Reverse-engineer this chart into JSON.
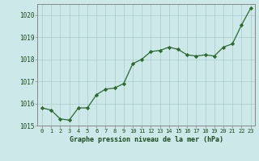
{
  "x": [
    0,
    1,
    2,
    3,
    4,
    5,
    6,
    7,
    8,
    9,
    10,
    11,
    12,
    13,
    14,
    15,
    16,
    17,
    18,
    19,
    20,
    21,
    22,
    23
  ],
  "y": [
    1015.8,
    1015.7,
    1015.3,
    1015.25,
    1015.8,
    1015.8,
    1016.4,
    1016.65,
    1016.7,
    1016.9,
    1017.8,
    1018.0,
    1018.35,
    1018.4,
    1018.55,
    1018.45,
    1018.2,
    1018.15,
    1018.2,
    1018.15,
    1018.55,
    1018.7,
    1019.55,
    1020.3
  ],
  "line_color": "#2d6a2d",
  "marker_color": "#2d6a2d",
  "bg_color": "#cce8e8",
  "plot_bg_color": "#cce8e8",
  "grid_color": "#aacccc",
  "xlabel": "Graphe pression niveau de la mer (hPa)",
  "xlabel_color": "#1a4a1a",
  "tick_color": "#1a4a1a",
  "spine_color": "#888888",
  "ylim": [
    1015.0,
    1020.5
  ],
  "yticks": [
    1015,
    1016,
    1017,
    1018,
    1019,
    1020
  ],
  "xticks": [
    0,
    1,
    2,
    3,
    4,
    5,
    6,
    7,
    8,
    9,
    10,
    11,
    12,
    13,
    14,
    15,
    16,
    17,
    18,
    19,
    20,
    21,
    22,
    23
  ],
  "xlim": [
    -0.5,
    23.5
  ]
}
